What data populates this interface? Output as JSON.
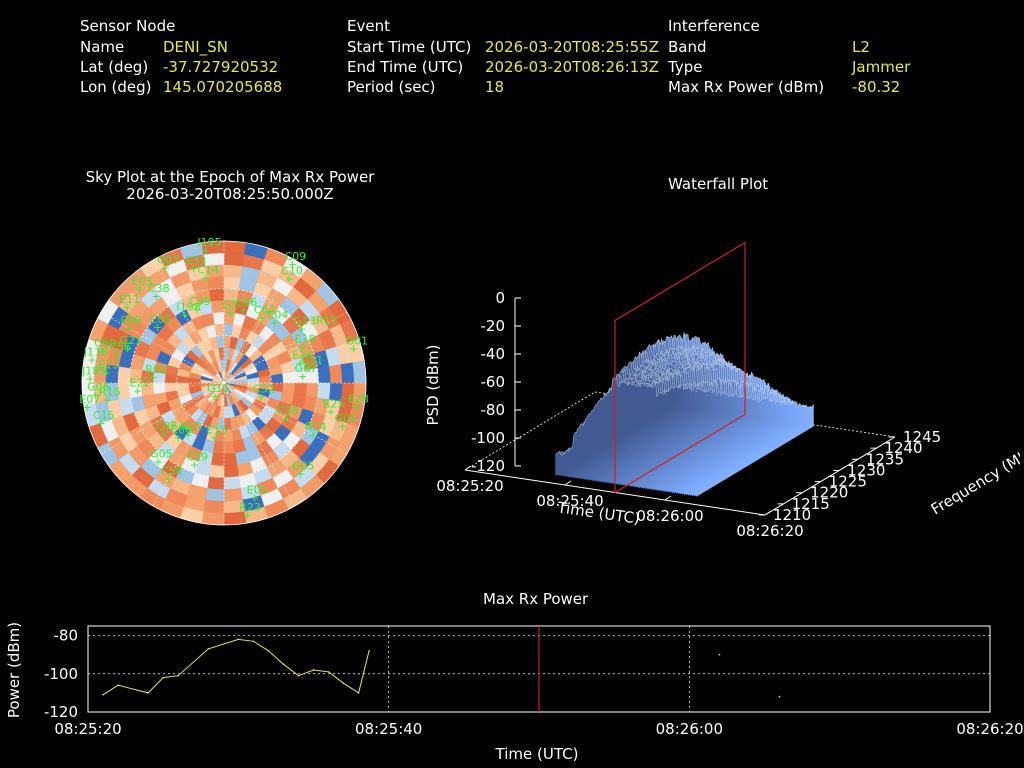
{
  "info": {
    "sensor": {
      "header": "Sensor Node",
      "name_label": "Name",
      "name_value": "DENI_SN",
      "lat_label": "Lat (deg)",
      "lat_value": "-37.727920532",
      "lon_label": "Lon (deg)",
      "lon_value": "145.070205688"
    },
    "event": {
      "header": "Event",
      "start_label": "Start Time (UTC)",
      "start_value": "2026-03-20T08:25:55Z",
      "end_label": "End Time (UTC)",
      "end_value": "2026-03-20T08:26:13Z",
      "period_label": "Period (sec)",
      "period_value": "18"
    },
    "interference": {
      "header": "Interference",
      "band_label": "Band",
      "band_value": "L2",
      "type_label": "Type",
      "type_value": "Jammer",
      "power_label": "Max Rx Power (dBm)",
      "power_value": "-80.32"
    }
  },
  "colors": {
    "text": "#ffffff",
    "value": "#e8e840",
    "sat": "#33ee33",
    "line": "#e8e840",
    "marker": "#cc2222"
  },
  "chart_data": [
    {
      "type": "scatter",
      "title": "Sky Plot at the Epoch of Max Rx Power",
      "subtitle": "2026-03-20T08:25:50.000Z",
      "satellites": [
        {
          "id": "I195",
          "az": 352,
          "el": 5
        },
        {
          "id": "C09",
          "az": 30,
          "el": 3
        },
        {
          "id": "C10",
          "az": 32,
          "el": 12
        },
        {
          "id": "E03",
          "az": 318,
          "el": 10
        },
        {
          "id": "G07",
          "az": 333,
          "el": 8
        },
        {
          "id": "E33",
          "az": 345,
          "el": 15
        },
        {
          "id": "C38",
          "az": 322,
          "el": 20
        },
        {
          "id": "C14",
          "az": 350,
          "el": 22
        },
        {
          "id": "E11",
          "az": 308,
          "el": 12
        },
        {
          "id": "E09",
          "az": 300,
          "el": 20
        },
        {
          "id": "G21",
          "az": 290,
          "el": 25
        },
        {
          "id": "C03",
          "az": 310,
          "el": 35
        },
        {
          "id": "I198",
          "az": 330,
          "el": 40
        },
        {
          "id": "C39",
          "az": 340,
          "el": 40
        },
        {
          "id": "G1",
          "az": 5,
          "el": 45
        },
        {
          "id": "C06",
          "az": 15,
          "el": 42
        },
        {
          "id": "C62",
          "az": 30,
          "el": 42
        },
        {
          "id": "C04",
          "az": 40,
          "el": 40
        },
        {
          "id": "G13R17",
          "az": 55,
          "el": 30
        },
        {
          "id": "G01",
          "az": 75,
          "el": 5
        },
        {
          "id": "E18",
          "az": 65,
          "el": 35
        },
        {
          "id": "E24",
          "az": 75,
          "el": 40
        },
        {
          "id": "C11",
          "az": 80,
          "el": 35
        },
        {
          "id": "G07",
          "az": 85,
          "el": 40
        },
        {
          "id": "C60",
          "az": 285,
          "el": 10
        },
        {
          "id": "J116",
          "az": 280,
          "el": 5
        },
        {
          "id": "C56",
          "az": 285,
          "el": 20
        },
        {
          "id": "J185",
          "az": 272,
          "el": 5
        },
        {
          "id": "E13",
          "az": 275,
          "el": 15
        },
        {
          "id": "G06",
          "az": 265,
          "el": 8
        },
        {
          "id": "E07",
          "az": 260,
          "el": 2
        },
        {
          "id": "R16",
          "az": 262,
          "el": 15
        },
        {
          "id": "C15",
          "az": 252,
          "el": 8
        },
        {
          "id": "E22",
          "az": 265,
          "el": 35
        },
        {
          "id": "R02",
          "az": 275,
          "el": 45
        },
        {
          "id": "G11",
          "az": 215,
          "el": 80
        },
        {
          "id": "C32",
          "az": 110,
          "el": 65
        },
        {
          "id": "C35",
          "az": 120,
          "el": 45
        },
        {
          "id": "R25",
          "az": 105,
          "el": 20
        },
        {
          "id": "R14",
          "az": 120,
          "el": 25
        },
        {
          "id": "E28",
          "az": 100,
          "el": 5
        },
        {
          "id": "G02",
          "az": 110,
          "el": 10
        },
        {
          "id": "G05",
          "az": 140,
          "el": 15
        },
        {
          "id": "C08",
          "az": 230,
          "el": 40
        },
        {
          "id": "C06",
          "az": 220,
          "el": 45
        },
        {
          "id": "R15",
          "az": 215,
          "el": 50
        },
        {
          "id": "E15",
          "az": 190,
          "el": 55
        },
        {
          "id": "C59",
          "az": 200,
          "el": 35
        },
        {
          "id": "G05",
          "az": 220,
          "el": 25
        },
        {
          "id": "C58",
          "az": 210,
          "el": 20
        },
        {
          "id": "E01",
          "az": 165,
          "el": 15
        },
        {
          "id": "R23",
          "az": 170,
          "el": 5
        }
      ]
    },
    {
      "type": "surface",
      "title": "Waterfall Plot",
      "zlabel": "PSD (dBm)",
      "xlabel": "Time (UTC)",
      "ylabel": "Frequency (MHz)",
      "zticks": [
        "0",
        "-20",
        "-40",
        "-60",
        "-80",
        "-100",
        "-120"
      ],
      "xticks": [
        "08:25:20",
        "08:25:40",
        "08:26:00",
        "08:26:20"
      ],
      "yticks": [
        "1210",
        "1215",
        "1220",
        "1225",
        "1230",
        "1235",
        "1240",
        "1245"
      ],
      "zlim": [
        -120,
        0
      ],
      "freq_range": [
        1210,
        1245
      ],
      "center_freq": 1227.6,
      "marker_time": "08:25:50"
    },
    {
      "type": "line",
      "title": "Max Rx Power",
      "xlabel": "Time (UTC)",
      "ylabel": "Power (dBm)",
      "xticks": [
        "08:25:20",
        "08:25:40",
        "08:26:00",
        "08:26:20"
      ],
      "yticks": [
        "-80",
        "-100",
        "-120"
      ],
      "xlim_sec": [
        0,
        60
      ],
      "ylim": [
        -120,
        -75
      ],
      "x": [
        1,
        2,
        4,
        5,
        6,
        8,
        10,
        11,
        12,
        13,
        14,
        15,
        16,
        17,
        18,
        18.7
      ],
      "y": [
        -111,
        -106,
        -110,
        -102,
        -101,
        -87,
        -82,
        -83,
        -88,
        -95,
        -101,
        -98,
        -99,
        -105,
        -110,
        -88
      ],
      "isolated_points": [
        [
          42,
          -90
        ],
        [
          46,
          -112
        ]
      ],
      "marker_x": 30,
      "grid": true
    }
  ]
}
